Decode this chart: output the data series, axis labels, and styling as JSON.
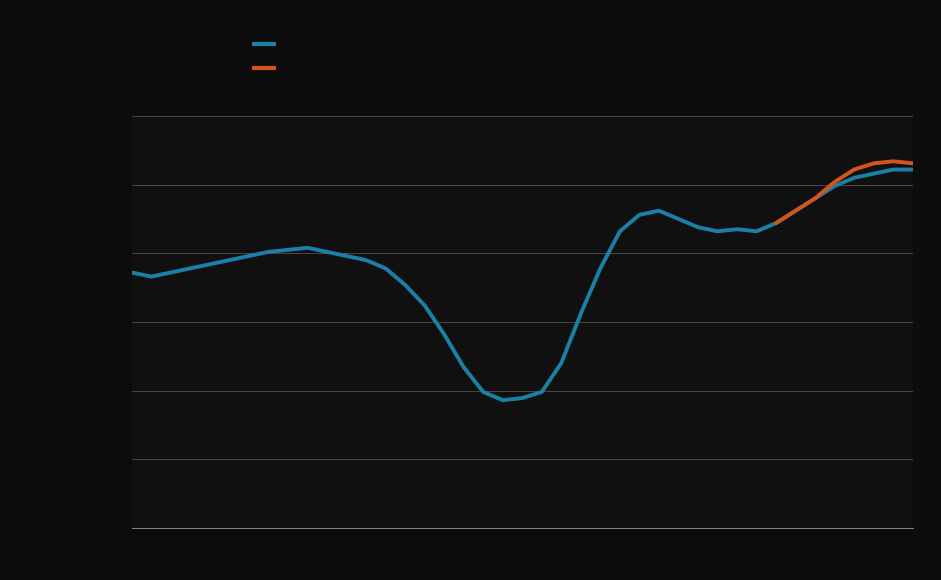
{
  "background_color": "#0c0c0c",
  "plot_bg_color": "#101010",
  "blue_color": "#1b7fa6",
  "orange_color": "#d4541a",
  "grid_color": "#c8c8c8",
  "legend_labels": [
    "",
    ""
  ],
  "blue_x": [
    0,
    1,
    2,
    3,
    4,
    5,
    6,
    7,
    8,
    9,
    10,
    11,
    12,
    13,
    14,
    15,
    16,
    17,
    18,
    19,
    20,
    21,
    22,
    23,
    24,
    25,
    26,
    27,
    28,
    29,
    30,
    31,
    32,
    33,
    34,
    35,
    36,
    37,
    38,
    39,
    40
  ],
  "blue_y": [
    62,
    61,
    62,
    63,
    64,
    65,
    66,
    67,
    67.5,
    68,
    67,
    66,
    65,
    63,
    59,
    54,
    47,
    39,
    33,
    31,
    31.5,
    33,
    40,
    52,
    63,
    72,
    76,
    77,
    75,
    73,
    72,
    72.5,
    72,
    74,
    77,
    80,
    83,
    85,
    86,
    87,
    87
  ],
  "orange_x": [
    33,
    34,
    35,
    36,
    37,
    38,
    39,
    40
  ],
  "orange_y": [
    74,
    77,
    80,
    84,
    87,
    88.5,
    89,
    88.5
  ],
  "ylim": [
    0,
    100
  ],
  "xlim": [
    0,
    40
  ],
  "n_gridlines": 7,
  "linewidth": 2.8
}
